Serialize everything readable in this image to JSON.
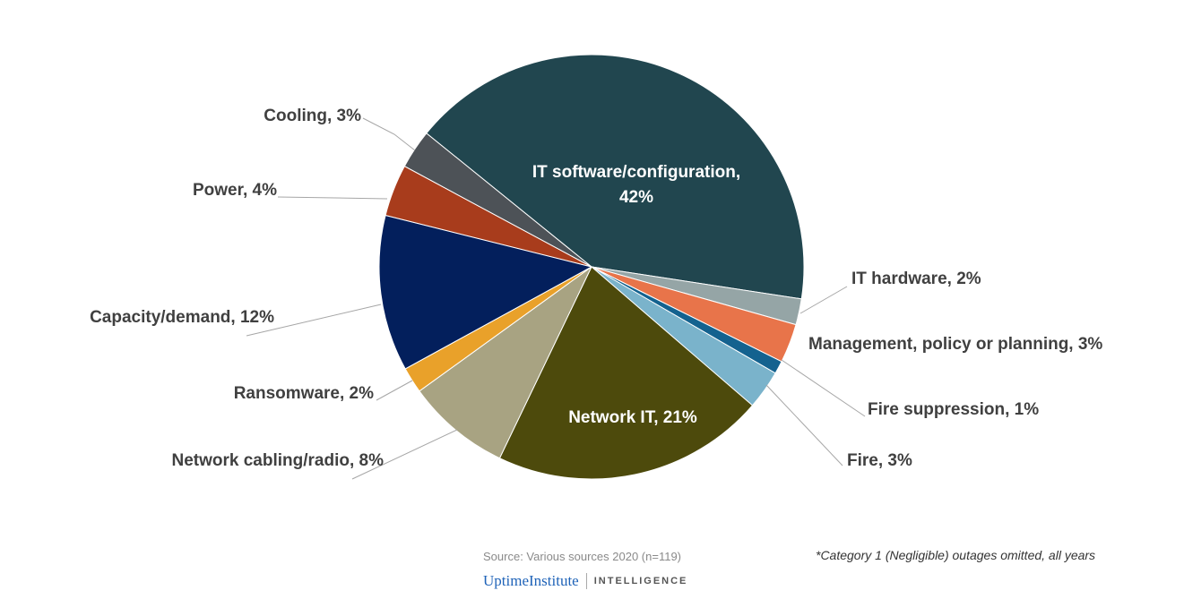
{
  "chart_data": {
    "type": "pie",
    "title": "",
    "slices": [
      {
        "label": "IT software/configuration, 42%",
        "name": "IT software/configuration",
        "value": 42,
        "color": "#21464f"
      },
      {
        "label": "IT hardware, 2%",
        "name": "IT hardware",
        "value": 2,
        "color": "#95a5a6"
      },
      {
        "label": "Management,  policy or planning, 3%",
        "name": "Management, policy or planning",
        "value": 3,
        "color": "#e8744a"
      },
      {
        "label": "Fire suppression, 1%",
        "name": "Fire suppression",
        "value": 1,
        "color": "#14628f"
      },
      {
        "label": "Fire, 3%",
        "name": "Fire",
        "value": 3,
        "color": "#7ab3cb"
      },
      {
        "label": "Network IT, 21%",
        "name": "Network IT",
        "value": 21,
        "color": "#4d4a0c"
      },
      {
        "label": "Network cabling/radio, 8%",
        "name": "Network cabling/radio",
        "value": 8,
        "color": "#a8a382"
      },
      {
        "label": "Ransomware, 2%",
        "name": "Ransomware",
        "value": 2,
        "color": "#e9a12a"
      },
      {
        "label": "Capacity/demand, 12%",
        "name": "Capacity/demand",
        "value": 12,
        "color": "#031f5c"
      },
      {
        "label": "Power, 4%",
        "name": "Power",
        "value": 4,
        "color": "#a83c1c"
      },
      {
        "label": "Cooling, 3%",
        "name": "Cooling",
        "value": 3,
        "color": "#4d5257"
      }
    ],
    "inside_labels": {
      "it_software_line1": "IT software/configuration,",
      "it_software_line2": "42%"
    }
  },
  "footer": {
    "source": "Source: Various sources 2020 (n=119)",
    "note": "*Category 1 (Negligible) outages omitted, all years",
    "logo_brand": "UptimeInstitute",
    "logo_division": "INTELLIGENCE"
  }
}
